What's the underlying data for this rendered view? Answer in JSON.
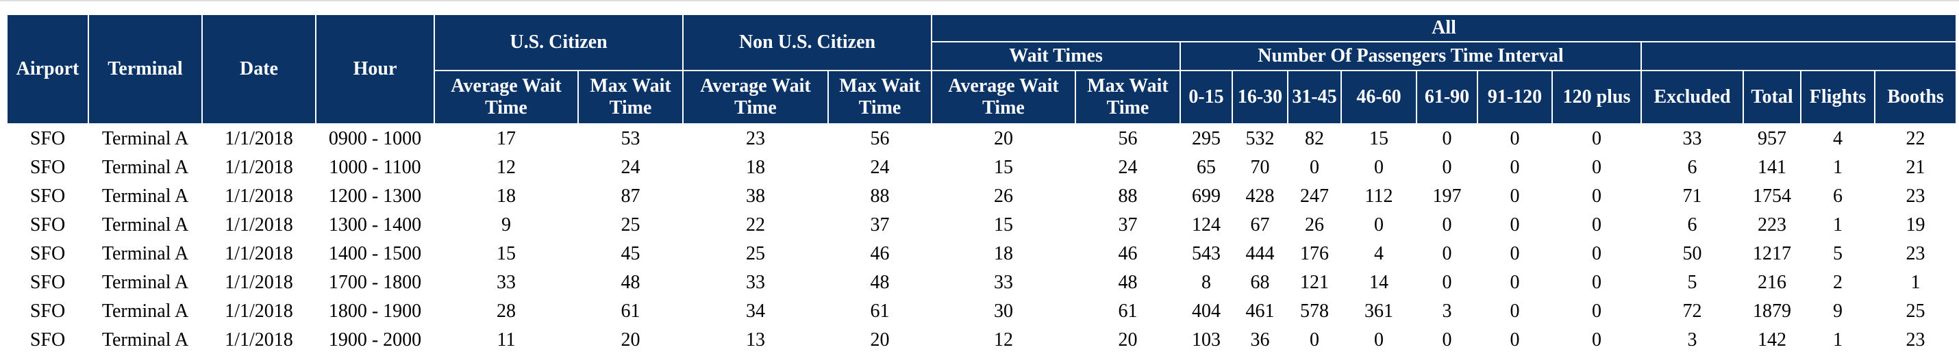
{
  "table": {
    "header": {
      "airport": "Airport",
      "terminal": "Terminal",
      "date": "Date",
      "hour": "Hour",
      "us_citizen": "U.S. Citizen",
      "non_us_citizen": "Non U.S. Citizen",
      "all": "All",
      "wait_times": "Wait Times",
      "passenger_intervals": "Number Of Passengers Time Interval",
      "sub_columns": [
        "Average Wait Time",
        "Max Wait Time",
        "Average Wait Time",
        "Max Wait Time",
        "Average Wait Time",
        "Max Wait Time",
        "0-15",
        "16-30",
        "31-45",
        "46-60",
        "61-90",
        "91-120",
        "120 plus",
        "Excluded",
        "Total",
        "Flights",
        "Booths"
      ]
    },
    "rows": [
      [
        "SFO",
        "Terminal A",
        "1/1/2018",
        "0900 - 1000",
        17,
        53,
        23,
        56,
        20,
        56,
        295,
        532,
        82,
        15,
        0,
        0,
        0,
        33,
        957,
        4,
        22
      ],
      [
        "SFO",
        "Terminal A",
        "1/1/2018",
        "1000 - 1100",
        12,
        24,
        18,
        24,
        15,
        24,
        65,
        70,
        0,
        0,
        0,
        0,
        0,
        6,
        141,
        1,
        21
      ],
      [
        "SFO",
        "Terminal A",
        "1/1/2018",
        "1200 - 1300",
        18,
        87,
        38,
        88,
        26,
        88,
        699,
        428,
        247,
        112,
        197,
        0,
        0,
        71,
        1754,
        6,
        23
      ],
      [
        "SFO",
        "Terminal A",
        "1/1/2018",
        "1300 - 1400",
        9,
        25,
        22,
        37,
        15,
        37,
        124,
        67,
        26,
        0,
        0,
        0,
        0,
        6,
        223,
        1,
        19
      ],
      [
        "SFO",
        "Terminal A",
        "1/1/2018",
        "1400 - 1500",
        15,
        45,
        25,
        46,
        18,
        46,
        543,
        444,
        176,
        4,
        0,
        0,
        0,
        50,
        1217,
        5,
        23
      ],
      [
        "SFO",
        "Terminal A",
        "1/1/2018",
        "1700 - 1800",
        33,
        48,
        33,
        48,
        33,
        48,
        8,
        68,
        121,
        14,
        0,
        0,
        0,
        5,
        216,
        2,
        1
      ],
      [
        "SFO",
        "Terminal A",
        "1/1/2018",
        "1800 - 1900",
        28,
        61,
        34,
        61,
        30,
        61,
        404,
        461,
        578,
        361,
        3,
        0,
        0,
        72,
        1879,
        9,
        25
      ],
      [
        "SFO",
        "Terminal A",
        "1/1/2018",
        "1900 - 2000",
        11,
        20,
        13,
        20,
        12,
        20,
        103,
        36,
        0,
        0,
        0,
        0,
        0,
        3,
        142,
        1,
        23
      ]
    ]
  }
}
